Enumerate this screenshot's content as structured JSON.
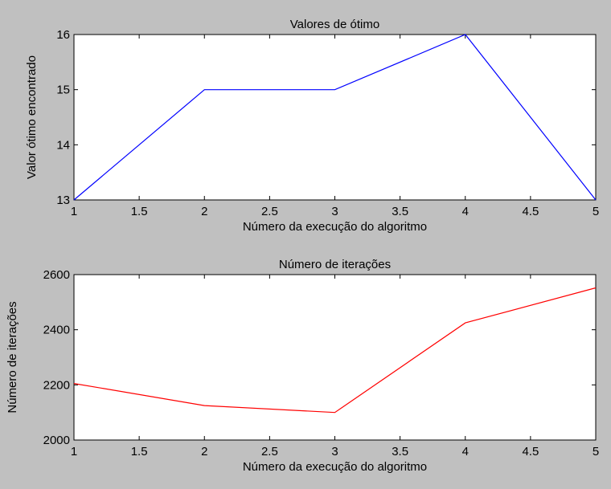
{
  "chart_data": [
    {
      "type": "line",
      "title": "Valores de ótimo",
      "xlabel": "Número da execução do algoritmo",
      "ylabel": "Valor ótimo encontrado",
      "xlim": [
        1,
        5
      ],
      "ylim": [
        13,
        16
      ],
      "xticks": [
        1,
        1.5,
        2,
        2.5,
        3,
        3.5,
        4,
        4.5,
        5
      ],
      "xtick_labels": [
        "1",
        "1.5",
        "2",
        "2.5",
        "3",
        "3.5",
        "4",
        "4.5",
        "5"
      ],
      "yticks": [
        13,
        14,
        15,
        16
      ],
      "ytick_labels": [
        "13",
        "14",
        "15",
        "16"
      ],
      "grid": false,
      "series": [
        {
          "x": [
            1,
            2,
            3,
            4,
            5
          ],
          "values": [
            13,
            15,
            15,
            16,
            13
          ],
          "color": "#0000ff"
        }
      ]
    },
    {
      "type": "line",
      "title": "Número de iterações",
      "xlabel": "Número da execução do algoritmo",
      "ylabel": "Número de iterações",
      "xlim": [
        1,
        5
      ],
      "ylim": [
        2000,
        2600
      ],
      "xticks": [
        1,
        1.5,
        2,
        2.5,
        3,
        3.5,
        4,
        4.5,
        5
      ],
      "xtick_labels": [
        "1",
        "1.5",
        "2",
        "2.5",
        "3",
        "3.5",
        "4",
        "4.5",
        "5"
      ],
      "yticks": [
        2000,
        2200,
        2400,
        2600
      ],
      "ytick_labels": [
        "2000",
        "2200",
        "2400",
        "2600"
      ],
      "grid": false,
      "series": [
        {
          "x": [
            1,
            2,
            3,
            4,
            5
          ],
          "values": [
            2205,
            2125,
            2100,
            2425,
            2552
          ],
          "color": "#ff0000"
        }
      ]
    }
  ]
}
